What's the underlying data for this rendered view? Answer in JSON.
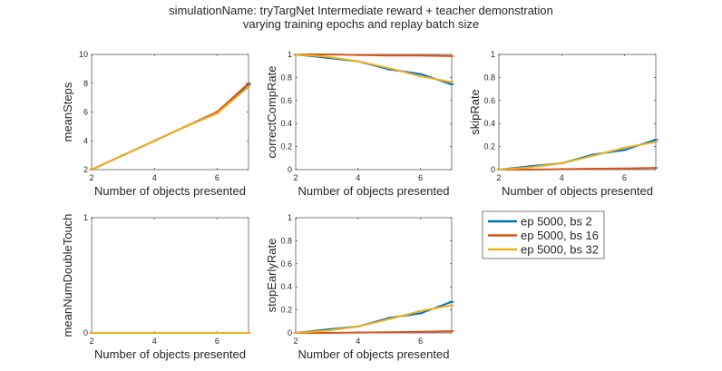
{
  "figure": {
    "title_line1": "simulationName: tryTargNet  Intermediate reward + teacher demonstration",
    "title_line2": "varying training epochs and replay batch size"
  },
  "legend": [
    {
      "label": "ep 5000, bs 2",
      "color": "#0072BD"
    },
    {
      "label": "ep 5000, bs 16",
      "color": "#D95319"
    },
    {
      "label": "ep 5000, bs 32",
      "color": "#EDB120"
    }
  ],
  "chart_data": [
    {
      "type": "line",
      "ylabel": "meanSteps",
      "xlabel": "Number of objects presented",
      "xlim": [
        2,
        7
      ],
      "ylim": [
        2,
        10
      ],
      "xticks": [
        "2",
        "4",
        "6"
      ],
      "yticks": [
        "2",
        "4",
        "6",
        "8",
        "10"
      ],
      "x": [
        2,
        3,
        4,
        5,
        6,
        7
      ],
      "series": [
        {
          "name": "ep 5000, bs 2",
          "color": "#0072BD",
          "values": [
            2,
            3,
            4,
            5,
            6,
            7.9
          ]
        },
        {
          "name": "ep 5000, bs 16",
          "color": "#D95319",
          "values": [
            2,
            3,
            4,
            5,
            6,
            8.0
          ]
        },
        {
          "name": "ep 5000, bs 32",
          "color": "#EDB120",
          "values": [
            2,
            3,
            4,
            5,
            5.9,
            7.75
          ]
        }
      ]
    },
    {
      "type": "line",
      "ylabel": "correctCompRate",
      "xlabel": "Number of objects presented",
      "xlim": [
        2,
        7
      ],
      "ylim": [
        0,
        1
      ],
      "xticks": [
        "2",
        "4",
        "6"
      ],
      "yticks": [
        "0",
        "0.2",
        "0.4",
        "0.6",
        "0.8",
        "1"
      ],
      "x": [
        2,
        3,
        4,
        5,
        6,
        7
      ],
      "series": [
        {
          "name": "ep 5000, bs 2",
          "color": "#0072BD",
          "values": [
            1,
            0.97,
            0.94,
            0.87,
            0.83,
            0.74
          ]
        },
        {
          "name": "ep 5000, bs 16",
          "color": "#D95319",
          "values": [
            1,
            1,
            0.995,
            0.99,
            0.99,
            0.985
          ]
        },
        {
          "name": "ep 5000, bs 32",
          "color": "#EDB120",
          "values": [
            1,
            0.98,
            0.94,
            0.88,
            0.81,
            0.76
          ]
        }
      ]
    },
    {
      "type": "line",
      "ylabel": "skipRate",
      "xlabel": "Number of objects presented",
      "xlim": [
        2,
        7
      ],
      "ylim": [
        0,
        1
      ],
      "xticks": [
        "2",
        "4",
        "6"
      ],
      "yticks": [
        "0",
        "0.2",
        "0.4",
        "0.6",
        "0.8",
        "1"
      ],
      "x": [
        2,
        3,
        4,
        5,
        6,
        7
      ],
      "series": [
        {
          "name": "ep 5000, bs 2",
          "color": "#0072BD",
          "values": [
            0,
            0.03,
            0.055,
            0.13,
            0.17,
            0.26
          ]
        },
        {
          "name": "ep 5000, bs 16",
          "color": "#D95319",
          "values": [
            0,
            0,
            0.004,
            0.008,
            0.01,
            0.015
          ]
        },
        {
          "name": "ep 5000, bs 32",
          "color": "#EDB120",
          "values": [
            0,
            0.02,
            0.055,
            0.12,
            0.19,
            0.24
          ]
        }
      ]
    },
    {
      "type": "line",
      "ylabel": "meanNumDoubleTouch",
      "xlabel": "Number of objects presented",
      "xlim": [
        2,
        7
      ],
      "ylim": [
        0,
        1
      ],
      "xticks": [
        "2",
        "4",
        "6"
      ],
      "yticks": [
        "0",
        "1"
      ],
      "x": [
        2,
        3,
        4,
        5,
        6,
        7
      ],
      "series": [
        {
          "name": "ep 5000, bs 2",
          "color": "#0072BD",
          "values": [
            0,
            0,
            0,
            0,
            0,
            0
          ]
        },
        {
          "name": "ep 5000, bs 16",
          "color": "#D95319",
          "values": [
            0,
            0,
            0,
            0,
            0,
            0
          ]
        },
        {
          "name": "ep 5000, bs 32",
          "color": "#EDB120",
          "values": [
            0,
            0,
            0,
            0,
            0,
            0
          ]
        }
      ]
    },
    {
      "type": "line",
      "ylabel": "stopEarlyRate",
      "xlabel": "Number of objects presented",
      "xlim": [
        2,
        7
      ],
      "ylim": [
        0,
        1
      ],
      "xticks": [
        "2",
        "4",
        "6"
      ],
      "yticks": [
        "0",
        "0.2",
        "0.4",
        "0.6",
        "0.8",
        "1"
      ],
      "x": [
        2,
        3,
        4,
        5,
        6,
        7
      ],
      "series": [
        {
          "name": "ep 5000, bs 2",
          "color": "#0072BD",
          "values": [
            0,
            0.03,
            0.055,
            0.13,
            0.17,
            0.27
          ]
        },
        {
          "name": "ep 5000, bs 16",
          "color": "#D95319",
          "values": [
            0,
            0,
            0.003,
            0.006,
            0.01,
            0.015
          ]
        },
        {
          "name": "ep 5000, bs 32",
          "color": "#EDB120",
          "values": [
            0,
            0.02,
            0.055,
            0.12,
            0.19,
            0.24
          ]
        }
      ]
    }
  ]
}
